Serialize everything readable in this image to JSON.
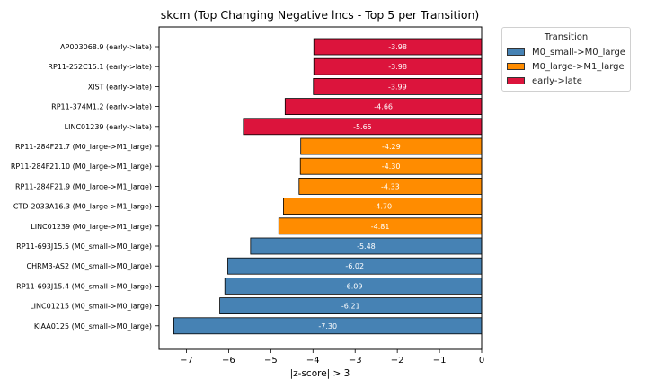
{
  "chart_data": {
    "type": "bar",
    "orientation": "horizontal",
    "title": "skcm (Top Changing Negative lncs - Top 5 per Transition)",
    "xlabel": "|z-score| > 3",
    "ylabel": "",
    "xlim": [
      -7.65,
      0
    ],
    "xticks": [
      "−7",
      "−6",
      "−5",
      "−4",
      "−3",
      "−2",
      "−1",
      "0"
    ],
    "grid": false,
    "legend_placement": "outside-right-top",
    "legend": {
      "title": "Transition",
      "entries": [
        {
          "label": "M0_small->M0_large",
          "color": "#4682b4"
        },
        {
          "label": "M0_large->M1_large",
          "color": "#ff8c00"
        },
        {
          "label": "early->late",
          "color": "#dc143c"
        }
      ]
    },
    "bars": [
      {
        "label": "AP003068.9 (early->late)",
        "value": -3.98,
        "value_label": "-3.98",
        "color": "#dc143c"
      },
      {
        "label": "RP11-252C15.1 (early->late)",
        "value": -3.98,
        "value_label": "-3.98",
        "color": "#dc143c"
      },
      {
        "label": "XIST (early->late)",
        "value": -3.99,
        "value_label": "-3.99",
        "color": "#dc143c"
      },
      {
        "label": "RP11-374M1.2 (early->late)",
        "value": -4.66,
        "value_label": "-4.66",
        "color": "#dc143c"
      },
      {
        "label": "LINC01239 (early->late)",
        "value": -5.65,
        "value_label": "-5.65",
        "color": "#dc143c"
      },
      {
        "label": "RP11-284F21.7 (M0_large->M1_large)",
        "value": -4.29,
        "value_label": "-4.29",
        "color": "#ff8c00"
      },
      {
        "label": "RP11-284F21.10 (M0_large->M1_large)",
        "value": -4.3,
        "value_label": "-4.30",
        "color": "#ff8c00"
      },
      {
        "label": "RP11-284F21.9 (M0_large->M1_large)",
        "value": -4.33,
        "value_label": "-4.33",
        "color": "#ff8c00"
      },
      {
        "label": "CTD-2033A16.3 (M0_large->M1_large)",
        "value": -4.7,
        "value_label": "-4.70",
        "color": "#ff8c00"
      },
      {
        "label": "LINC01239 (M0_large->M1_large)",
        "value": -4.81,
        "value_label": "-4.81",
        "color": "#ff8c00"
      },
      {
        "label": "RP11-693J15.5 (M0_small->M0_large)",
        "value": -5.48,
        "value_label": "-5.48",
        "color": "#4682b4"
      },
      {
        "label": "CHRM3-AS2 (M0_small->M0_large)",
        "value": -6.02,
        "value_label": "-6.02",
        "color": "#4682b4"
      },
      {
        "label": "RP11-693J15.4 (M0_small->M0_large)",
        "value": -6.09,
        "value_label": "-6.09",
        "color": "#4682b4"
      },
      {
        "label": "LINC01215 (M0_small->M0_large)",
        "value": -6.21,
        "value_label": "-6.21",
        "color": "#4682b4"
      },
      {
        "label": "KIAA0125 (M0_small->M0_large)",
        "value": -7.3,
        "value_label": "-7.30",
        "color": "#4682b4"
      }
    ]
  }
}
